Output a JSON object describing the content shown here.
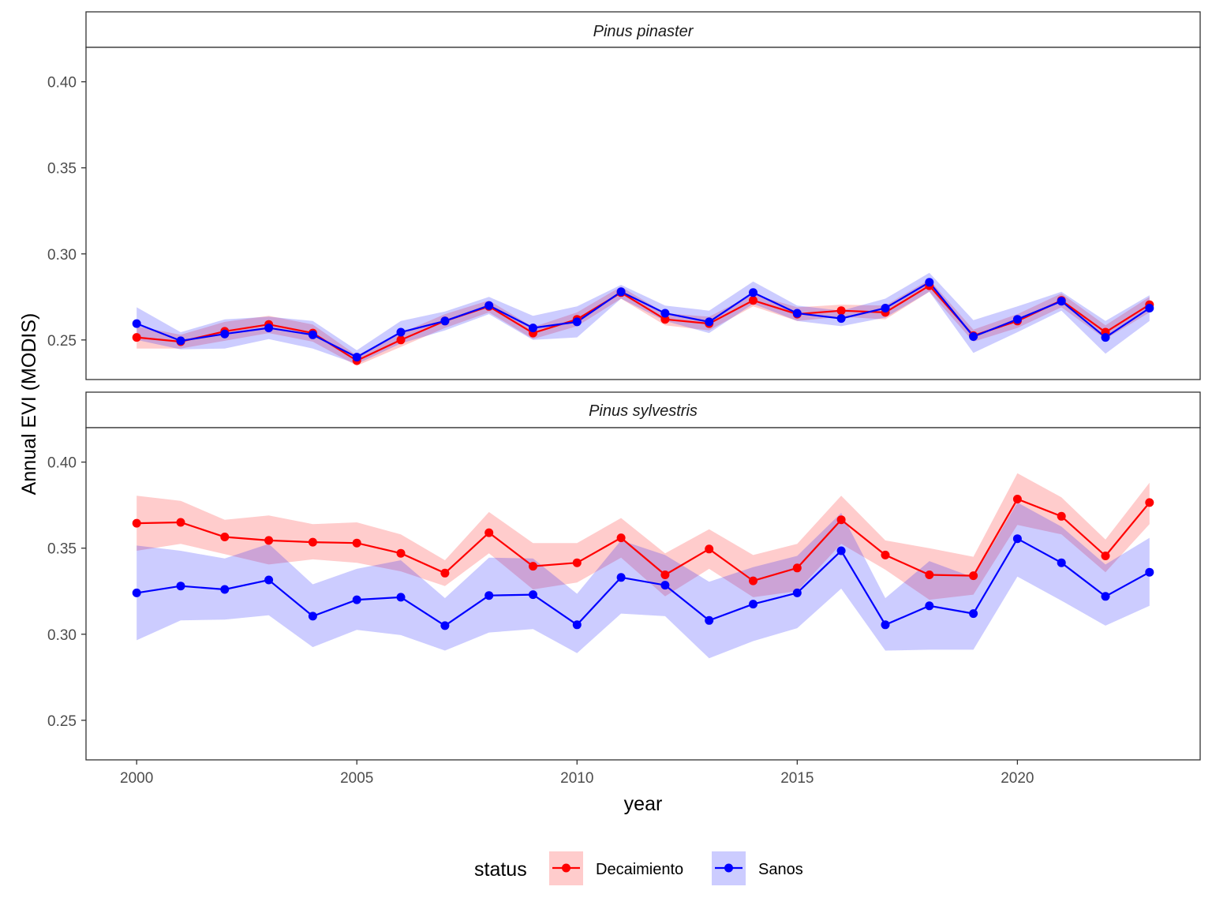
{
  "chart_data": {
    "type": "line",
    "xlabel": "year",
    "ylabel": "Annual EVI (MODIS)",
    "ylim": [
      0.227,
      0.42
    ],
    "xlim": [
      1998.85,
      2024.15
    ],
    "x_ticks": [
      2000,
      2005,
      2010,
      2015,
      2020
    ],
    "y_ticks": [
      0.25,
      0.3,
      0.35,
      0.4
    ],
    "grid": false,
    "legend": {
      "title": "status",
      "position": "bottom",
      "entries": [
        {
          "name": "Decaimiento",
          "color": "#ff0000",
          "fill": "#ffb3b3"
        },
        {
          "name": "Sanos",
          "color": "#0000ff",
          "fill": "#b3b3ff"
        }
      ]
    },
    "x": [
      2000,
      2001,
      2002,
      2003,
      2004,
      2005,
      2006,
      2007,
      2008,
      2009,
      2010,
      2011,
      2012,
      2013,
      2014,
      2015,
      2016,
      2017,
      2018,
      2019,
      2020,
      2021,
      2022,
      2023
    ],
    "panels": [
      {
        "title": "Pinus pinaster",
        "series": [
          {
            "name": "Decaimiento",
            "values": [
              0.2515,
              0.249,
              0.255,
              0.259,
              0.254,
              0.238,
              0.25,
              0.261,
              0.2695,
              0.254,
              0.262,
              0.2775,
              0.262,
              0.2595,
              0.273,
              0.265,
              0.267,
              0.266,
              0.2815,
              0.2525,
              0.261,
              0.273,
              0.2545,
              0.2705
            ],
            "lower": [
              0.245,
              0.245,
              0.2495,
              0.254,
              0.249,
              0.235,
              0.246,
              0.257,
              0.266,
              0.2505,
              0.258,
              0.274,
              0.2585,
              0.2555,
              0.2695,
              0.261,
              0.2635,
              0.262,
              0.278,
              0.249,
              0.257,
              0.269,
              0.2505,
              0.266
            ],
            "upper": [
              0.258,
              0.253,
              0.2605,
              0.264,
              0.259,
              0.241,
              0.254,
              0.265,
              0.273,
              0.2575,
              0.266,
              0.281,
              0.2655,
              0.2635,
              0.2765,
              0.269,
              0.2705,
              0.27,
              0.285,
              0.256,
              0.265,
              0.277,
              0.2585,
              0.275
            ]
          },
          {
            "name": "Sanos",
            "values": [
              0.2595,
              0.2495,
              0.2535,
              0.257,
              0.253,
              0.24,
              0.2545,
              0.261,
              0.27,
              0.257,
              0.2605,
              0.278,
              0.2655,
              0.2605,
              0.2775,
              0.2655,
              0.2625,
              0.2685,
              0.2835,
              0.252,
              0.262,
              0.2725,
              0.2515,
              0.2685
            ],
            "lower": [
              0.25,
              0.2445,
              0.245,
              0.2505,
              0.245,
              0.236,
              0.248,
              0.2555,
              0.265,
              0.25,
              0.2515,
              0.274,
              0.261,
              0.254,
              0.271,
              0.261,
              0.258,
              0.263,
              0.278,
              0.2425,
              0.2545,
              0.267,
              0.242,
              0.261
            ],
            "upper": [
              0.269,
              0.2545,
              0.262,
              0.2635,
              0.261,
              0.244,
              0.261,
              0.2665,
              0.275,
              0.264,
              0.2695,
              0.282,
              0.27,
              0.267,
              0.284,
              0.27,
              0.267,
              0.274,
              0.289,
              0.2615,
              0.2695,
              0.278,
              0.261,
              0.276
            ]
          }
        ]
      },
      {
        "title": "Pinus sylvestris",
        "series": [
          {
            "name": "Decaimiento",
            "values": [
              0.3645,
              0.365,
              0.3565,
              0.3545,
              0.3535,
              0.353,
              0.347,
              0.3355,
              0.359,
              0.3395,
              0.3415,
              0.356,
              0.3345,
              0.3495,
              0.331,
              0.3385,
              0.3665,
              0.346,
              0.3345,
              0.334,
              0.3785,
              0.3685,
              0.3455,
              0.3765
            ],
            "lower": [
              0.3485,
              0.3525,
              0.3465,
              0.3405,
              0.3435,
              0.3415,
              0.3365,
              0.328,
              0.347,
              0.326,
              0.33,
              0.3445,
              0.322,
              0.338,
              0.3215,
              0.325,
              0.3525,
              0.3375,
              0.32,
              0.323,
              0.3635,
              0.358,
              0.336,
              0.364
            ],
            "upper": [
              0.3805,
              0.3775,
              0.3665,
              0.369,
              0.364,
              0.365,
              0.358,
              0.343,
              0.371,
              0.353,
              0.353,
              0.3675,
              0.347,
              0.361,
              0.346,
              0.3525,
              0.3805,
              0.3545,
              0.35,
              0.345,
              0.3935,
              0.3795,
              0.355,
              0.388
            ]
          },
          {
            "name": "Sanos",
            "values": [
              0.324,
              0.328,
              0.326,
              0.3315,
              0.3105,
              0.32,
              0.3215,
              0.305,
              0.3225,
              0.323,
              0.3055,
              0.333,
              0.3285,
              0.308,
              0.3175,
              0.324,
              0.3485,
              0.3055,
              0.3165,
              0.312,
              0.3555,
              0.3415,
              0.322,
              0.336
            ],
            "lower": [
              0.2965,
              0.308,
              0.3085,
              0.311,
              0.2925,
              0.3025,
              0.2995,
              0.2905,
              0.301,
              0.303,
              0.289,
              0.312,
              0.3105,
              0.286,
              0.296,
              0.3035,
              0.3265,
              0.2905,
              0.291,
              0.291,
              0.3335,
              0.3195,
              0.305,
              0.3165
            ],
            "upper": [
              0.3515,
              0.3485,
              0.344,
              0.3525,
              0.329,
              0.338,
              0.343,
              0.321,
              0.3445,
              0.344,
              0.3235,
              0.3545,
              0.346,
              0.3305,
              0.339,
              0.3455,
              0.3705,
              0.321,
              0.3425,
              0.333,
              0.3765,
              0.3625,
              0.3405,
              0.356
            ]
          }
        ]
      }
    ]
  }
}
